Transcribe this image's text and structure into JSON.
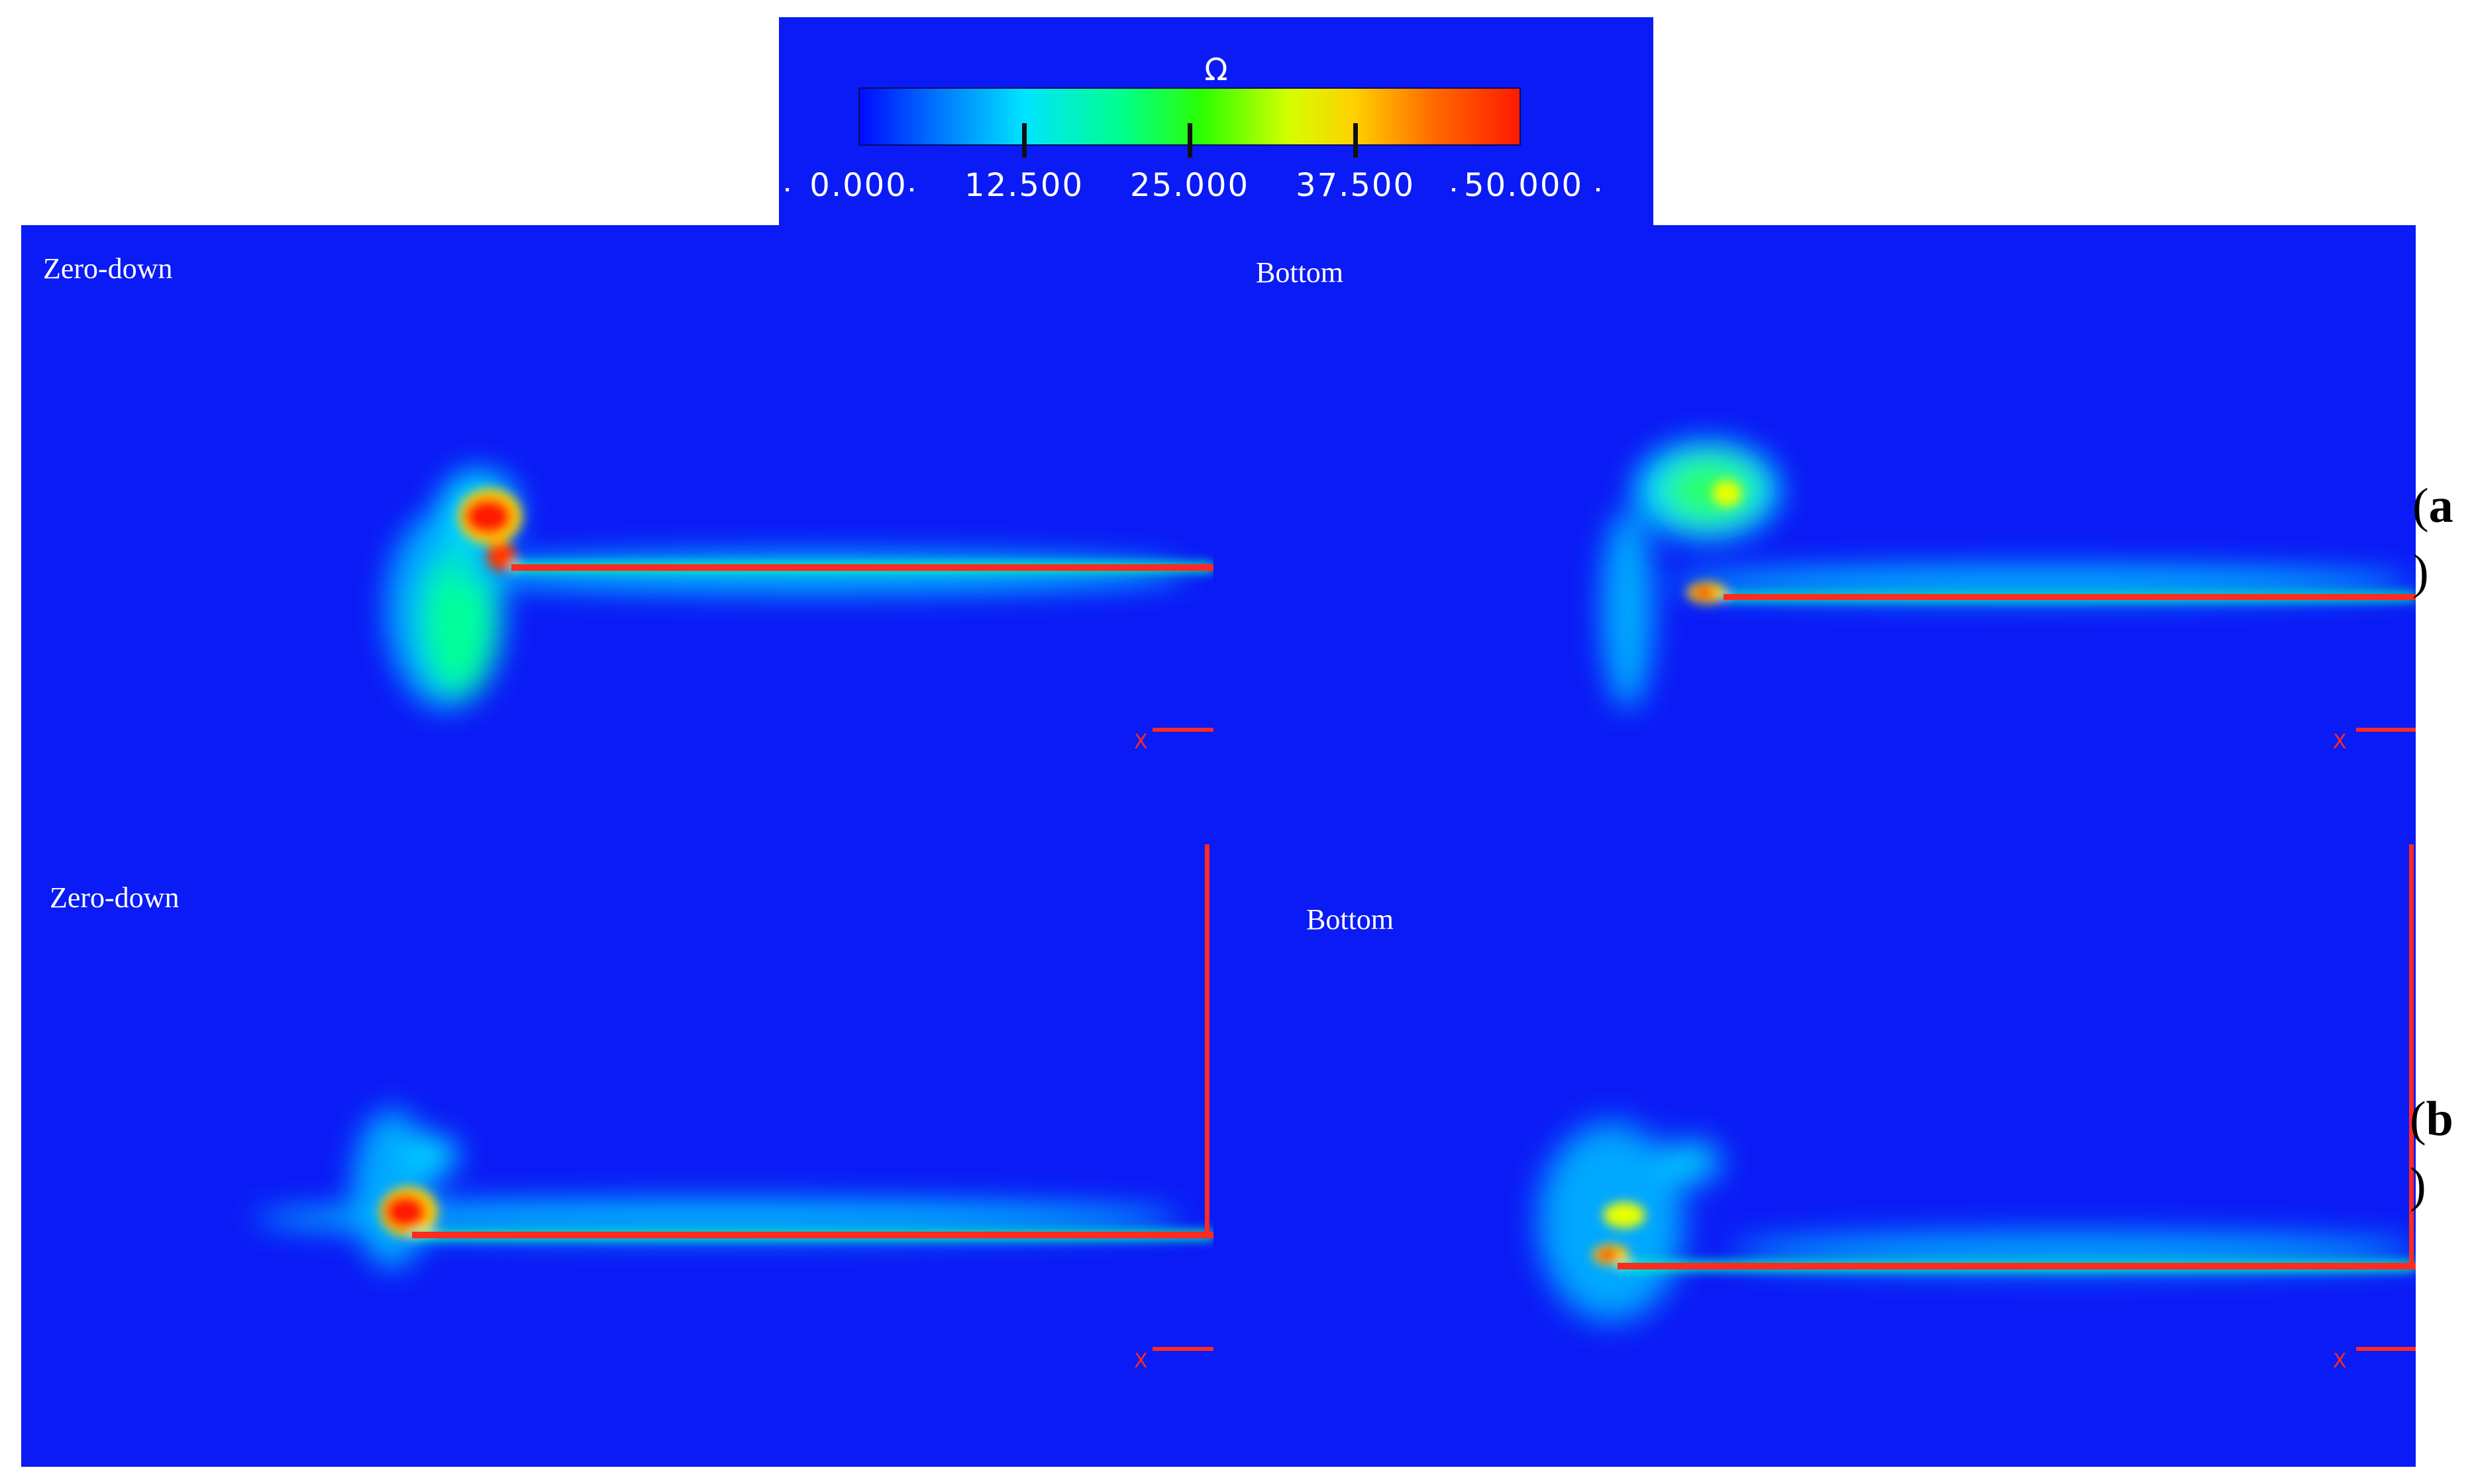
{
  "legend": {
    "symbol": "Ω",
    "ticks": [
      "0.000",
      "12.500",
      "25.000",
      "37.500",
      "50.000"
    ]
  },
  "panels": [
    {
      "id": "a-left",
      "label": "Zero-down"
    },
    {
      "id": "a-right",
      "label": "Bottom"
    },
    {
      "id": "b-left",
      "label": "Zero-down"
    },
    {
      "id": "b-right",
      "label": "Bottom"
    }
  ],
  "rows": [
    {
      "letter": "a",
      "paren_open": "(",
      "paren_close": ")"
    },
    {
      "letter": "b",
      "paren_open": "(",
      "paren_close": ")"
    }
  ],
  "axis_marker": "X",
  "colors": {
    "background": "#0a1bf5",
    "high": "#ff1a00",
    "mid": "#00ff8a",
    "low": "#00c8ff"
  }
}
